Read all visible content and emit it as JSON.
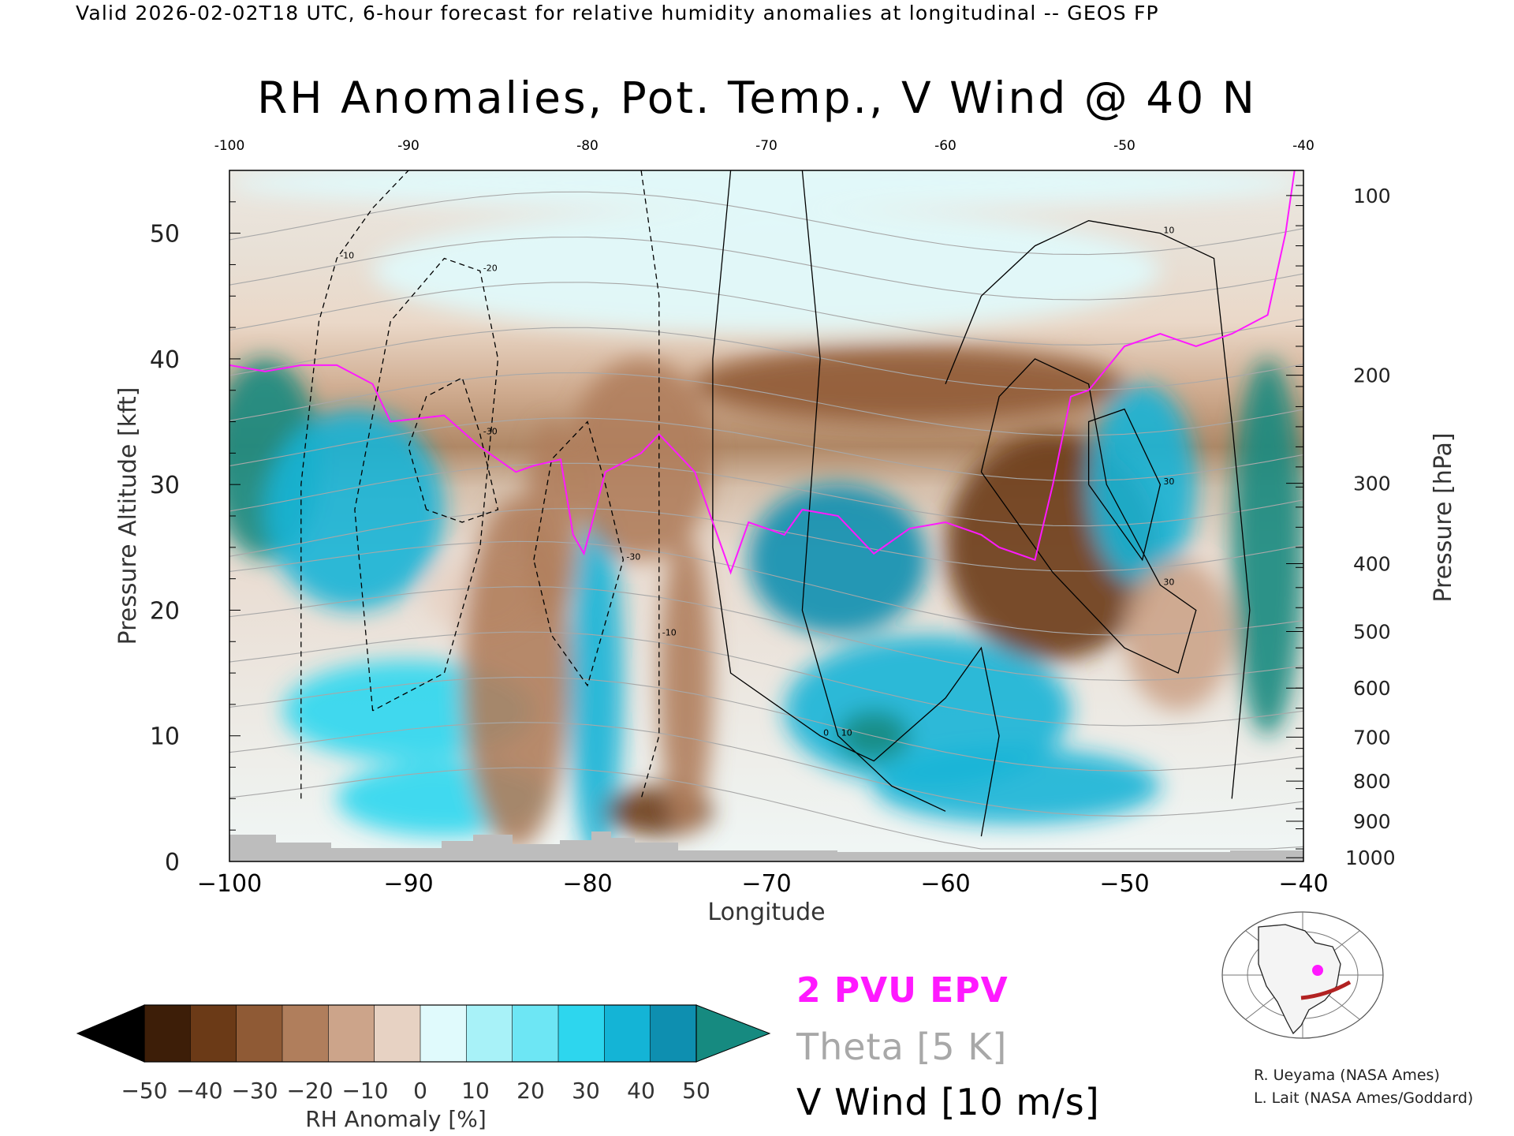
{
  "caption": "Valid 2026-02-02T18 UTC, 6-hour forecast for relative humidity anomalies at longitudinal -- GEOS FP",
  "title": "RH Anomalies, Pot. Temp., V Wind @ 40 N",
  "legend": {
    "epv": "2 PVU EPV",
    "theta": "Theta [5 K]",
    "vwind": "V Wind [10 m/s]"
  },
  "credits": [
    "R. Ueyama (NASA Ames)",
    "L. Lait (NASA Ames/Goddard)"
  ],
  "colors": {
    "epv": "#ff19ff",
    "theta": "#a8a8a8",
    "vwind": "#000000",
    "terrain": "#bdbdbd",
    "locator_path": "#b22222",
    "locator_point": "#ff19ff"
  },
  "chart_data": {
    "type": "heatmap",
    "title": "RH Anomalies, Pot. Temp., V Wind @ 40 N",
    "xlabel": "Longitude",
    "ylabel": "Pressure Altitude [kft]",
    "ylabel_right": "Pressure [hPa]",
    "xlim": [
      -100,
      -40
    ],
    "ylim": [
      0,
      55
    ],
    "x_ticks": [
      "-100",
      "-90",
      "-80",
      "-70",
      "-60",
      "-50",
      "-40"
    ],
    "x_top_ticks": [
      "-100",
      "-90",
      "-80",
      "-70",
      "-60",
      "-50",
      "-40"
    ],
    "y_ticks": [
      "0",
      "10",
      "20",
      "30",
      "40",
      "50"
    ],
    "pressure_ticks": [
      {
        "label": "100",
        "kft": 53.0
      },
      {
        "label": "200",
        "kft": 38.7
      },
      {
        "label": "300",
        "kft": 30.1
      },
      {
        "label": "400",
        "kft": 23.7
      },
      {
        "label": "500",
        "kft": 18.3
      },
      {
        "label": "600",
        "kft": 13.8
      },
      {
        "label": "700",
        "kft": 9.9
      },
      {
        "label": "800",
        "kft": 6.4
      },
      {
        "label": "900",
        "kft": 3.2
      },
      {
        "label": "1000",
        "kft": 0.3
      }
    ],
    "colorbar": {
      "label": "RH Anomaly [%]",
      "ticks": [
        "−50",
        "−40",
        "−30",
        "−20",
        "−10",
        "0",
        "10",
        "20",
        "30",
        "40",
        "50"
      ],
      "colors": [
        "#000000",
        "#3d1e08",
        "#6b3a17",
        "#8f5a35",
        "#b07e5c",
        "#cca48a",
        "#e7d2c3",
        "#e0fafc",
        "#a8f2f8",
        "#6de6f4",
        "#2dd6ee",
        "#14b4d6",
        "#0e8fb0",
        "#168a80"
      ]
    },
    "rh_blobs": [
      {
        "lon": -98,
        "kft": 32,
        "rx": 3.0,
        "ry": 8,
        "value": 45
      },
      {
        "lon": -93,
        "kft": 28,
        "rx": 5.0,
        "ry": 8,
        "value": 25
      },
      {
        "lon": -90,
        "kft": 12,
        "rx": 7.0,
        "ry": 4,
        "value": 18
      },
      {
        "lon": -86,
        "kft": 21,
        "rx": 3.0,
        "ry": 3,
        "value": -15
      },
      {
        "lon": -88,
        "kft": 5,
        "rx": 6.0,
        "ry": 3,
        "value": 20
      },
      {
        "lon": -84,
        "kft": 15,
        "rx": 3.0,
        "ry": 14,
        "value": -35
      },
      {
        "lon": -82,
        "kft": 27,
        "rx": 1.5,
        "ry": 8,
        "value": -30
      },
      {
        "lon": -79.5,
        "kft": 14,
        "rx": 1.5,
        "ry": 14,
        "value": 30
      },
      {
        "lon": -77,
        "kft": 32,
        "rx": 4.0,
        "ry": 8,
        "value": -35
      },
      {
        "lon": -76,
        "kft": 4,
        "rx": 3.0,
        "ry": 2,
        "value": -50
      },
      {
        "lon": -74.5,
        "kft": 14,
        "rx": 1.5,
        "ry": 12,
        "value": -35
      },
      {
        "lon": -66,
        "kft": 24,
        "rx": 5.0,
        "ry": 6,
        "value": 35
      },
      {
        "lon": -61,
        "kft": 12,
        "rx": 8.0,
        "ry": 6,
        "value": 25
      },
      {
        "lon": -64,
        "kft": 10,
        "rx": 2.0,
        "ry": 2,
        "value": 50
      },
      {
        "lon": -62,
        "kft": 38,
        "rx": 12.0,
        "ry": 3,
        "value": -40
      },
      {
        "lon": -54,
        "kft": 25,
        "rx": 6.0,
        "ry": 9,
        "value": -45
      },
      {
        "lon": -56,
        "kft": 6,
        "rx": 8.0,
        "ry": 3,
        "value": 30
      },
      {
        "lon": -49,
        "kft": 30,
        "rx": 3.0,
        "ry": 8,
        "value": 30
      },
      {
        "lon": -47,
        "kft": 18,
        "rx": 3.0,
        "ry": 6,
        "value": -20
      },
      {
        "lon": -42,
        "kft": 25,
        "rx": 2.0,
        "ry": 15,
        "value": 45
      },
      {
        "lon": -70,
        "kft": 47,
        "rx": 22.0,
        "ry": 5,
        "value": -10
      },
      {
        "lon": -70,
        "kft": 54,
        "rx": 30.0,
        "ry": 2,
        "value": -3
      }
    ],
    "theta_levels": [
      290,
      300,
      310,
      320,
      330,
      340,
      350,
      360,
      370,
      380,
      390,
      400,
      410,
      420
    ],
    "epv_2pvu": [
      [
        -100,
        39.5
      ],
      [
        -98,
        39
      ],
      [
        -96,
        39.5
      ],
      [
        -94,
        39.5
      ],
      [
        -92,
        38
      ],
      [
        -91,
        35
      ],
      [
        -88,
        35.5
      ],
      [
        -86,
        33
      ],
      [
        -84,
        31
      ],
      [
        -83,
        31.5
      ],
      [
        -81.5,
        32
      ],
      [
        -80.8,
        26
      ],
      [
        -80.2,
        24.5
      ],
      [
        -79,
        31
      ],
      [
        -77,
        32.5
      ],
      [
        -76,
        34
      ],
      [
        -74,
        31
      ],
      [
        -73,
        27
      ],
      [
        -72,
        23
      ],
      [
        -71,
        27
      ],
      [
        -69,
        26
      ],
      [
        -68,
        28
      ],
      [
        -66,
        27.5
      ],
      [
        -64,
        24.5
      ],
      [
        -62,
        26.5
      ],
      [
        -60,
        27
      ],
      [
        -58,
        26
      ],
      [
        -57,
        25
      ],
      [
        -55,
        24
      ],
      [
        -54,
        30
      ],
      [
        -53,
        37
      ],
      [
        -52,
        37.5
      ],
      [
        -50,
        41
      ],
      [
        -48,
        42
      ],
      [
        -46,
        41
      ],
      [
        -44,
        42
      ],
      [
        -42,
        43.5
      ],
      [
        -41,
        50
      ],
      [
        -40.5,
        55
      ]
    ],
    "vwind_contours": [
      {
        "label": "-30",
        "points": [
          [
            -89,
            28
          ],
          [
            -90,
            33
          ],
          [
            -89,
            37
          ],
          [
            -87,
            38.5
          ],
          [
            -86,
            34
          ],
          [
            -85,
            28
          ],
          [
            -87,
            27
          ],
          [
            -89,
            28
          ]
        ]
      },
      {
        "label": "-30",
        "points": [
          [
            -83,
            24
          ],
          [
            -82,
            32
          ],
          [
            -80,
            35
          ],
          [
            -79,
            30
          ],
          [
            -78,
            24
          ],
          [
            -80,
            14
          ],
          [
            -82,
            18
          ],
          [
            -83,
            24
          ]
        ]
      },
      {
        "label": "-20",
        "points": [
          [
            -92,
            12
          ],
          [
            -93,
            28
          ],
          [
            -91,
            43
          ],
          [
            -88,
            48
          ],
          [
            -86,
            47
          ],
          [
            -85,
            40
          ],
          [
            -86,
            25
          ],
          [
            -88,
            15
          ],
          [
            -92,
            12
          ]
        ]
      },
      {
        "label": "-10",
        "points": [
          [
            -96,
            5
          ],
          [
            -96,
            30
          ],
          [
            -95,
            43
          ],
          [
            -94,
            48
          ],
          [
            -92,
            52
          ],
          [
            -90,
            55
          ]
        ]
      },
      {
        "label": "-10",
        "points": [
          [
            -77,
            55
          ],
          [
            -76,
            45
          ],
          [
            -76,
            30
          ],
          [
            -76,
            18
          ],
          [
            -76,
            10
          ],
          [
            -77,
            5
          ]
        ]
      },
      {
        "label": "0",
        "points": [
          [
            -72,
            55
          ],
          [
            -73,
            40
          ],
          [
            -73,
            25
          ],
          [
            -72,
            15
          ],
          [
            -69,
            12
          ],
          [
            -67,
            10
          ],
          [
            -64,
            8
          ],
          [
            -60,
            13
          ],
          [
            -58,
            17
          ],
          [
            -57,
            10
          ],
          [
            -58,
            2
          ]
        ]
      },
      {
        "label": "10",
        "points": [
          [
            -68,
            55
          ],
          [
            -67,
            40
          ],
          [
            -68,
            20
          ],
          [
            -66,
            10
          ],
          [
            -63,
            6
          ],
          [
            -60,
            4
          ]
        ]
      },
      {
        "label": "10",
        "points": [
          [
            -60,
            38
          ],
          [
            -58,
            45
          ],
          [
            -55,
            49
          ],
          [
            -52,
            51
          ],
          [
            -48,
            50
          ],
          [
            -45,
            48
          ],
          [
            -44,
            35
          ],
          [
            -43,
            20
          ],
          [
            -44,
            5
          ]
        ]
      },
      {
        "label": "30",
        "points": [
          [
            -58,
            31
          ],
          [
            -57,
            37
          ],
          [
            -55,
            40
          ],
          [
            -52,
            38
          ],
          [
            -51,
            30
          ],
          [
            -48,
            22
          ],
          [
            -46,
            20
          ],
          [
            -47,
            15
          ],
          [
            -50,
            17
          ],
          [
            -54,
            23
          ],
          [
            -58,
            31
          ]
        ]
      },
      {
        "label": "30",
        "points": [
          [
            -52,
            30
          ],
          [
            -52,
            35
          ],
          [
            -50,
            36
          ],
          [
            -48,
            30
          ],
          [
            -49,
            24
          ],
          [
            -52,
            30
          ]
        ]
      }
    ]
  }
}
